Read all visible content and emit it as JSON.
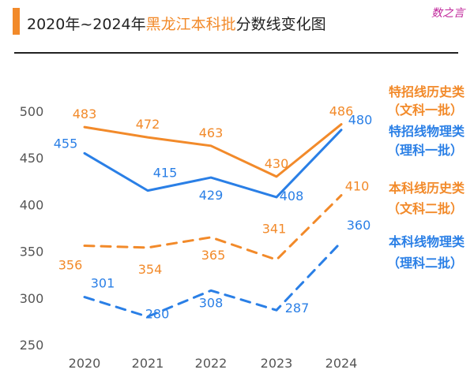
{
  "header": {
    "title_prefix": "2020年~2024年",
    "title_highlight": "黑龙江本科批",
    "title_suffix": "分数线变化图",
    "watermark": "数之言",
    "accent_color": "#f28a2a"
  },
  "chart_data": {
    "type": "line",
    "title": "2020年~2024年黑龙江本科批分数线变化图",
    "categories": [
      "2020",
      "2021",
      "2022",
      "2023",
      "2024"
    ],
    "y_ticks": [
      250,
      300,
      350,
      400,
      450,
      500
    ],
    "ylim": [
      250,
      500
    ],
    "grid": false,
    "series": [
      {
        "name_line1": "特招线历史类",
        "name_line2": "（文科一批）",
        "values": [
          483,
          472,
          463,
          430,
          486
        ],
        "labels": [
          "483",
          "472",
          "463",
          "430",
          "486"
        ],
        "color": "#f28a2a",
        "style": "solid"
      },
      {
        "name_line1": "特招线物理类",
        "name_line2": "（理科一批）",
        "values": [
          455,
          415,
          429,
          408,
          480
        ],
        "labels": [
          "455",
          "415",
          "429",
          "408",
          "480"
        ],
        "color": "#2a7fe6",
        "style": "solid"
      },
      {
        "name_line1": "本科线历史类",
        "name_line2": "（文科二批）",
        "values": [
          356,
          354,
          365,
          341,
          410
        ],
        "labels": [
          "356",
          "354",
          "365",
          "341",
          "410"
        ],
        "color": "#f28a2a",
        "style": "dashed"
      },
      {
        "name_line1": "本科线物理类",
        "name_line2": "（理科二批）",
        "values": [
          301,
          280,
          308,
          287,
          360
        ],
        "labels": [
          "301",
          "280",
          "308",
          "287",
          "360"
        ],
        "color": "#2a7fe6",
        "style": "dashed"
      }
    ]
  }
}
